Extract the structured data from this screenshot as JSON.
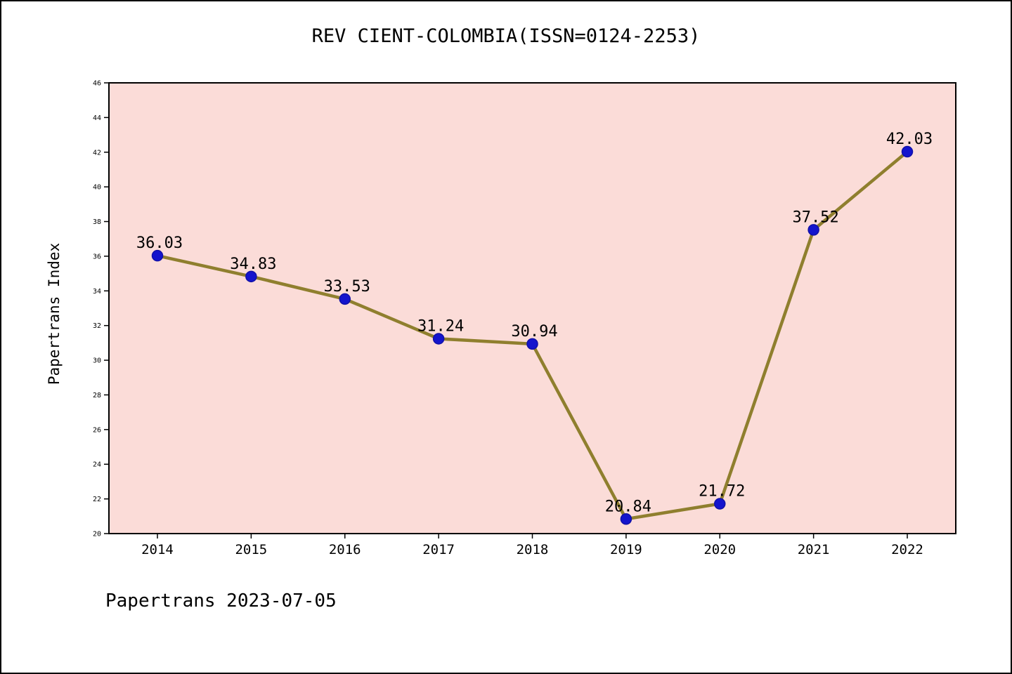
{
  "header": {
    "title": "REV CIENT-COLOMBIA(ISSN=0124-2253)"
  },
  "footer": {
    "text": "Papertrans 2023-07-05"
  },
  "chart_data": {
    "type": "line",
    "title": "REV CIENT-COLOMBIA(ISSN=0124-2253)",
    "xlabel": "",
    "ylabel": "Papertrans Index",
    "categories": [
      "2014",
      "2015",
      "2016",
      "2017",
      "2018",
      "2019",
      "2020",
      "2021",
      "2022"
    ],
    "values": [
      36.03,
      34.83,
      33.53,
      31.24,
      30.94,
      20.84,
      21.72,
      37.52,
      42.03
    ],
    "point_labels": [
      "36.03",
      "34.83",
      "33.53",
      "31.24",
      "30.94",
      "20.84",
      "21.72",
      "37.52",
      "42.03"
    ],
    "ylim": [
      20,
      46
    ],
    "ytick_step": 2,
    "grid": false,
    "legend": "none",
    "colors": {
      "plot_bg": "#fbdcd8",
      "line": "#8f7f2e",
      "marker_fill": "#1414cd",
      "marker_edge": "#1111a8",
      "text": "#000000",
      "axis": "#000000"
    }
  }
}
